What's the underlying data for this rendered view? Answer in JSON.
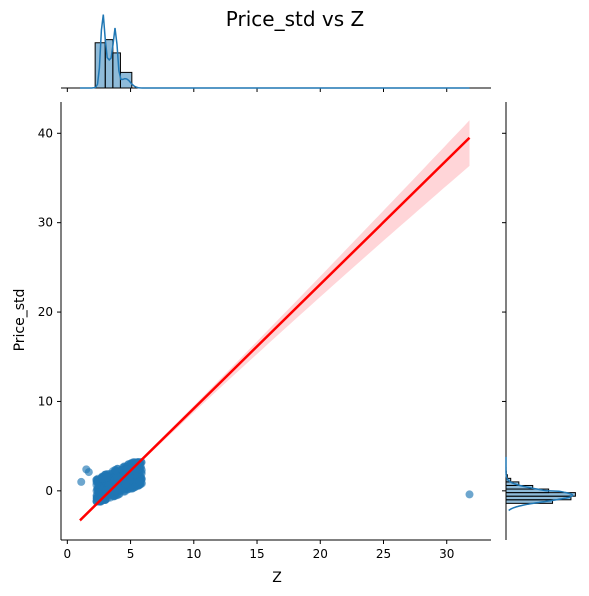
{
  "chart_data": {
    "type": "scatter",
    "title": "Price_std vs Z",
    "xlabel": "Z",
    "ylabel": "Price_std",
    "xlim": [
      -0.5,
      33.5
    ],
    "ylim": [
      -5.5,
      43.5
    ],
    "xticks": [
      0,
      5,
      10,
      15,
      20,
      25,
      30
    ],
    "yticks": [
      0,
      10,
      20,
      30,
      40
    ],
    "grid": false,
    "colors": {
      "points": "#1f77b4",
      "regression_line": "#ff0000",
      "confidence_band": "#ffb3b8",
      "axes": "#000000"
    },
    "regression": {
      "x": [
        1.0,
        31.8
      ],
      "y": [
        -3.3,
        39.5
      ],
      "ci_upper_at_x_max": 41.3,
      "ci_lower_at_x_max": 36.5
    },
    "points_cluster": {
      "description": "dense cluster of roughly several hundred points",
      "x_range": [
        2.0,
        6.5
      ],
      "y_range": [
        -1.2,
        3.2
      ]
    },
    "outliers": [
      {
        "x": 1.1,
        "y": 1.0
      },
      {
        "x": 1.5,
        "y": 2.4
      },
      {
        "x": 1.7,
        "y": 2.1
      },
      {
        "x": 31.8,
        "y": -0.4
      }
    ],
    "marginal_x": {
      "type": "histogram+kde",
      "bins": [
        {
          "x0": 2.2,
          "x1": 3.0,
          "height": 0.58
        },
        {
          "x0": 3.0,
          "x1": 3.6,
          "height": 0.62
        },
        {
          "x0": 3.6,
          "x1": 4.2,
          "height": 0.45
        },
        {
          "x0": 4.2,
          "x1": 5.1,
          "height": 0.2
        }
      ],
      "kde_peaks": [
        2.8,
        3.8
      ]
    },
    "marginal_y": {
      "type": "histogram+kde",
      "peak_y": -0.5
    }
  }
}
